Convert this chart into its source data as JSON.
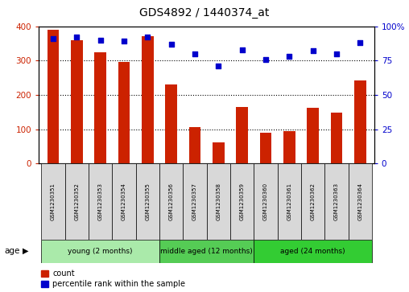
{
  "title": "GDS4892 / 1440374_at",
  "samples": [
    "GSM1230351",
    "GSM1230352",
    "GSM1230353",
    "GSM1230354",
    "GSM1230355",
    "GSM1230356",
    "GSM1230357",
    "GSM1230358",
    "GSM1230359",
    "GSM1230360",
    "GSM1230361",
    "GSM1230362",
    "GSM1230363",
    "GSM1230364"
  ],
  "counts": [
    390,
    360,
    325,
    295,
    370,
    230,
    105,
    62,
    165,
    90,
    95,
    163,
    148,
    242
  ],
  "percentiles": [
    91,
    92,
    90,
    89,
    92,
    87,
    80,
    71,
    83,
    76,
    78,
    82,
    80,
    88
  ],
  "ylim_left": [
    0,
    400
  ],
  "ylim_right": [
    0,
    100
  ],
  "yticks_left": [
    0,
    100,
    200,
    300,
    400
  ],
  "yticks_right": [
    0,
    25,
    50,
    75,
    100
  ],
  "yticklabels_right": [
    "0",
    "25",
    "50",
    "75",
    "100%"
  ],
  "groups": [
    {
      "label": "young (2 months)",
      "start": 0,
      "end": 5,
      "color": "#AAEAAA"
    },
    {
      "label": "middle aged (12 months)",
      "start": 5,
      "end": 9,
      "color": "#55CC55"
    },
    {
      "label": "aged (24 months)",
      "start": 9,
      "end": 14,
      "color": "#33CC33"
    }
  ],
  "bar_color": "#CC2200",
  "marker_color": "#0000CC",
  "bar_width": 0.5,
  "tick_label_color_left": "#CC2200",
  "tick_label_color_right": "#0000CC",
  "age_label": "age",
  "legend_items": [
    "count",
    "percentile rank within the sample"
  ]
}
